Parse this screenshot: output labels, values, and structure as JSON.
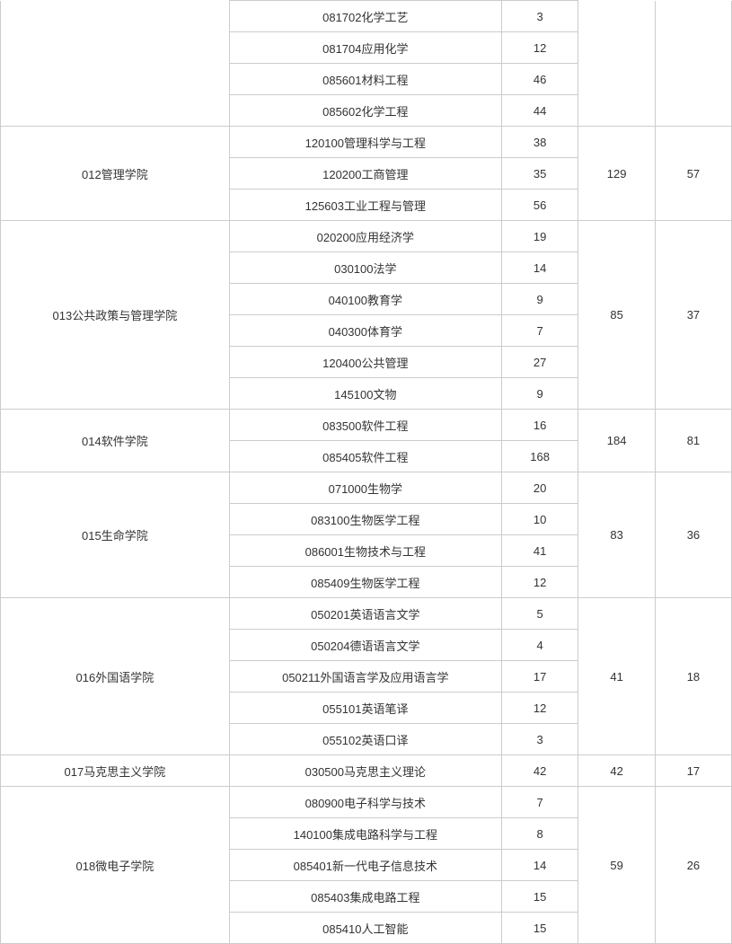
{
  "groups": [
    {
      "dept": "",
      "total": "",
      "extra": "",
      "rows": [
        {
          "major": "081702化学工艺",
          "num": "3"
        },
        {
          "major": "081704应用化学",
          "num": "12"
        },
        {
          "major": "085601材料工程",
          "num": "46"
        },
        {
          "major": "085602化学工程",
          "num": "44"
        }
      ],
      "showDept": false,
      "showTotals": false
    },
    {
      "dept": "012管理学院",
      "total": "129",
      "extra": "57",
      "rows": [
        {
          "major": "120100管理科学与工程",
          "num": "38"
        },
        {
          "major": "120200工商管理",
          "num": "35"
        },
        {
          "major": "125603工业工程与管理",
          "num": "56"
        }
      ],
      "showDept": true,
      "showTotals": true
    },
    {
      "dept": "013公共政策与管理学院",
      "total": "85",
      "extra": "37",
      "rows": [
        {
          "major": "020200应用经济学",
          "num": "19"
        },
        {
          "major": "030100法学",
          "num": "14"
        },
        {
          "major": "040100教育学",
          "num": "9"
        },
        {
          "major": "040300体育学",
          "num": "7"
        },
        {
          "major": "120400公共管理",
          "num": "27"
        },
        {
          "major": "145100文物",
          "num": "9"
        }
      ],
      "showDept": true,
      "showTotals": true
    },
    {
      "dept": "014软件学院",
      "total": "184",
      "extra": "81",
      "rows": [
        {
          "major": "083500软件工程",
          "num": "16"
        },
        {
          "major": "085405软件工程",
          "num": "168"
        }
      ],
      "showDept": true,
      "showTotals": true
    },
    {
      "dept": "015生命学院",
      "total": "83",
      "extra": "36",
      "rows": [
        {
          "major": "071000生物学",
          "num": "20"
        },
        {
          "major": "083100生物医学工程",
          "num": "10"
        },
        {
          "major": "086001生物技术与工程",
          "num": "41"
        },
        {
          "major": "085409生物医学工程",
          "num": "12"
        }
      ],
      "showDept": true,
      "showTotals": true
    },
    {
      "dept": "016外国语学院",
      "total": "41",
      "extra": "18",
      "rows": [
        {
          "major": "050201英语语言文学",
          "num": "5"
        },
        {
          "major": "050204德语语言文学",
          "num": "4"
        },
        {
          "major": "050211外国语言学及应用语言学",
          "num": "17"
        },
        {
          "major": "055101英语笔译",
          "num": "12"
        },
        {
          "major": "055102英语口译",
          "num": "3"
        }
      ],
      "showDept": true,
      "showTotals": true
    },
    {
      "dept": "017马克思主义学院",
      "total": "42",
      "extra": "17",
      "rows": [
        {
          "major": "030500马克思主义理论",
          "num": "42"
        }
      ],
      "showDept": true,
      "showTotals": true
    },
    {
      "dept": "018微电子学院",
      "total": "59",
      "extra": "26",
      "rows": [
        {
          "major": "080900电子科学与技术",
          "num": "7"
        },
        {
          "major": "140100集成电路科学与工程",
          "num": "8"
        },
        {
          "major": "085401新一代电子信息技术",
          "num": "14"
        },
        {
          "major": "085403集成电路工程",
          "num": "15"
        },
        {
          "major": "085410人工智能",
          "num": "15"
        }
      ],
      "showDept": true,
      "showTotals": true
    }
  ]
}
